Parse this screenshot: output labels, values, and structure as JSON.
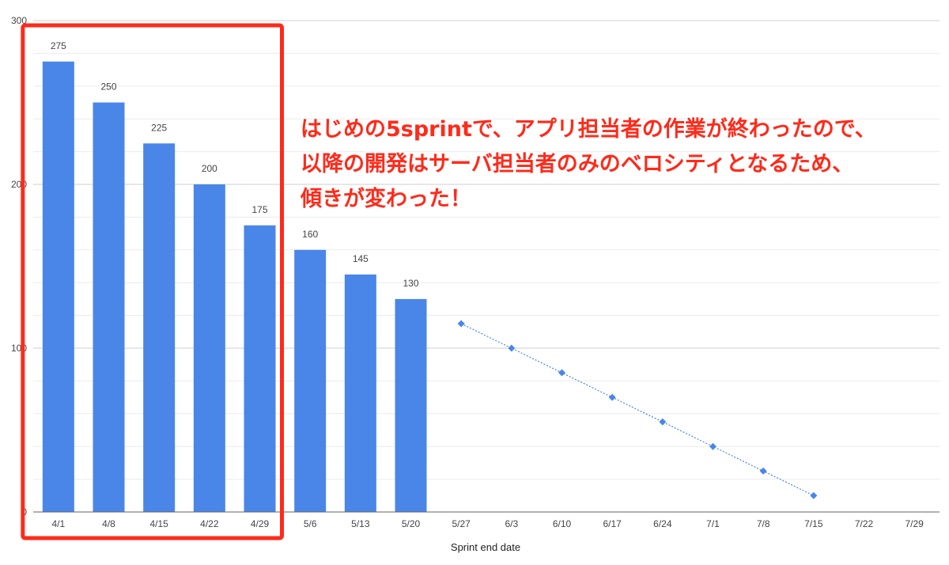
{
  "chart_data": {
    "type": "bar",
    "categories": [
      "4/1",
      "4/8",
      "4/15",
      "4/22",
      "4/29",
      "5/6",
      "5/13",
      "5/20",
      "5/27",
      "6/3",
      "6/10",
      "6/17",
      "6/24",
      "7/1",
      "7/8",
      "7/15",
      "7/22",
      "7/29"
    ],
    "values": [
      275,
      250,
      225,
      200,
      175,
      160,
      145,
      130,
      null,
      null,
      null,
      null,
      null,
      null,
      null,
      null,
      null,
      null
    ],
    "projection": [
      null,
      null,
      null,
      null,
      null,
      null,
      null,
      null,
      115,
      100,
      85,
      70,
      55,
      40,
      25,
      10,
      null,
      null
    ],
    "xlabel": "Sprint end date",
    "ylabel": "",
    "ylim": [
      0,
      300
    ],
    "yticks": [
      0,
      100,
      200,
      300
    ],
    "grid": true,
    "colors": {
      "bar": "#4a86e8",
      "projection": "#4a86e8",
      "highlight": "#ff2a1a",
      "annotation": "#ff2a1a"
    },
    "highlight_range": [
      0,
      4
    ],
    "annotation": [
      "はじめの5sprintで、アプリ担当者の作業が終わったので、",
      "以降の開発はサーバ担当者のみのベロシティとなるため、",
      "傾きが変わった！"
    ]
  }
}
